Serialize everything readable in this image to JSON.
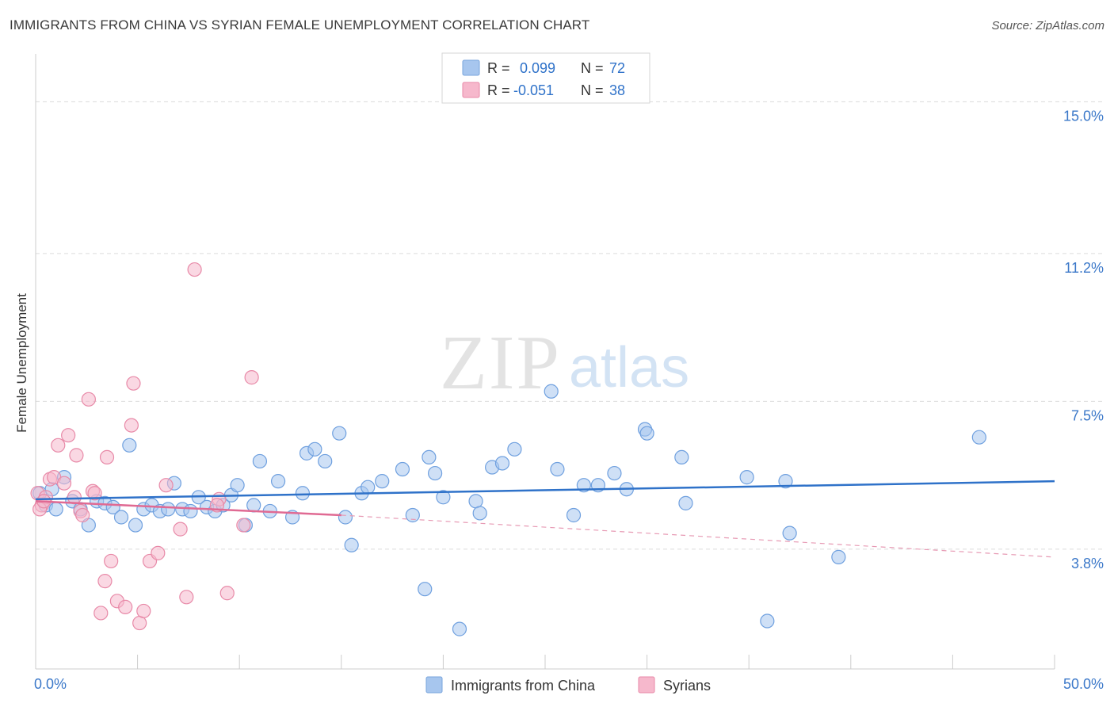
{
  "header": {
    "title": "IMMIGRANTS FROM CHINA VS SYRIAN FEMALE UNEMPLOYMENT CORRELATION CHART",
    "source": "Source: ZipAtlas.com"
  },
  "watermark": {
    "zip": "ZIP",
    "atlas": "atlas"
  },
  "legend_box": {
    "rows": [
      {
        "r_label": "R =",
        "r_value": "0.099",
        "n_label": "N =",
        "n_value": "72",
        "color": "#a7c6ee"
      },
      {
        "r_label": "R =",
        "r_value": "-0.051",
        "n_label": "N =",
        "n_value": "38",
        "color": "#f6b8cc"
      }
    ]
  },
  "bottom_legend": {
    "items": [
      {
        "label": "Immigrants from China",
        "color": "#a7c6ee"
      },
      {
        "label": "Syrians",
        "color": "#f6b8cc"
      }
    ]
  },
  "chart_data": {
    "type": "scatter",
    "title": "IMMIGRANTS FROM CHINA VS SYRIAN FEMALE UNEMPLOYMENT CORRELATION CHART",
    "xlabel": "",
    "ylabel": "Female Unemployment",
    "xlim": [
      0,
      50
    ],
    "ylim": [
      0.8,
      16.0
    ],
    "x_tick_labels": [
      "0.0%",
      "50.0%"
    ],
    "y_ticks": [
      3.8,
      7.5,
      11.2,
      15.0
    ],
    "y_tick_labels": [
      "3.8%",
      "7.5%",
      "11.2%",
      "15.0%"
    ],
    "grid": true,
    "series": [
      {
        "name": "Immigrants from China",
        "color": "#6fa0df",
        "fill": "#a7c6ee",
        "trend": {
          "x": [
            0,
            50
          ],
          "y": [
            5.05,
            5.5
          ],
          "color": "#2f72c9"
        },
        "points": [
          [
            0.2,
            5.2
          ],
          [
            0.5,
            4.9
          ],
          [
            1.0,
            4.8
          ],
          [
            1.4,
            5.6
          ],
          [
            1.8,
            5.0
          ],
          [
            2.2,
            4.8
          ],
          [
            2.6,
            4.4
          ],
          [
            3.0,
            5.0
          ],
          [
            3.4,
            4.95
          ],
          [
            3.8,
            4.85
          ],
          [
            4.2,
            4.6
          ],
          [
            4.6,
            6.4
          ],
          [
            4.9,
            4.4
          ],
          [
            5.3,
            4.8
          ],
          [
            5.7,
            4.9
          ],
          [
            6.1,
            4.75
          ],
          [
            6.5,
            4.8
          ],
          [
            6.8,
            5.45
          ],
          [
            7.2,
            4.8
          ],
          [
            7.6,
            4.75
          ],
          [
            8.0,
            5.1
          ],
          [
            8.4,
            4.85
          ],
          [
            8.8,
            4.75
          ],
          [
            9.2,
            4.9
          ],
          [
            9.6,
            5.15
          ],
          [
            9.9,
            5.4
          ],
          [
            10.3,
            4.4
          ],
          [
            10.7,
            4.9
          ],
          [
            11.0,
            6.0
          ],
          [
            11.5,
            4.75
          ],
          [
            11.9,
            5.5
          ],
          [
            12.6,
            4.6
          ],
          [
            13.1,
            5.2
          ],
          [
            13.3,
            6.2
          ],
          [
            13.7,
            6.3
          ],
          [
            14.2,
            6.0
          ],
          [
            14.9,
            6.7
          ],
          [
            15.2,
            4.6
          ],
          [
            15.5,
            3.9
          ],
          [
            16.0,
            5.2
          ],
          [
            16.3,
            5.35
          ],
          [
            17.0,
            5.5
          ],
          [
            18.0,
            5.8
          ],
          [
            18.5,
            4.65
          ],
          [
            19.1,
            2.8
          ],
          [
            19.3,
            6.1
          ],
          [
            19.6,
            5.7
          ],
          [
            20.0,
            5.1
          ],
          [
            20.8,
            1.8
          ],
          [
            21.6,
            5.0
          ],
          [
            21.8,
            4.7
          ],
          [
            22.4,
            5.85
          ],
          [
            22.9,
            5.95
          ],
          [
            23.5,
            6.3
          ],
          [
            25.3,
            7.75
          ],
          [
            25.6,
            5.8
          ],
          [
            26.4,
            4.65
          ],
          [
            26.9,
            5.4
          ],
          [
            27.6,
            5.4
          ],
          [
            28.4,
            5.7
          ],
          [
            29.0,
            5.3
          ],
          [
            29.9,
            6.8
          ],
          [
            30.0,
            6.7
          ],
          [
            31.7,
            6.1
          ],
          [
            31.9,
            4.95
          ],
          [
            34.9,
            5.6
          ],
          [
            35.9,
            2.0
          ],
          [
            36.8,
            5.5
          ],
          [
            37.0,
            4.2
          ],
          [
            39.4,
            3.6
          ],
          [
            46.3,
            6.6
          ],
          [
            0.8,
            5.3
          ]
        ]
      },
      {
        "name": "Syrians",
        "color": "#e88aa8",
        "fill": "#f6b8cc",
        "trend": {
          "x": [
            0,
            15
          ],
          "y": [
            5.0,
            4.65
          ],
          "color": "#e06a93"
        },
        "trend_dashed": {
          "x": [
            15,
            50
          ],
          "y": [
            4.65,
            3.6
          ],
          "color": "#e79ab4"
        },
        "points": [
          [
            0.1,
            5.2
          ],
          [
            0.3,
            4.9
          ],
          [
            0.5,
            5.1
          ],
          [
            0.7,
            5.55
          ],
          [
            0.9,
            5.6
          ],
          [
            1.1,
            6.4
          ],
          [
            1.4,
            5.45
          ],
          [
            1.6,
            6.65
          ],
          [
            1.9,
            5.1
          ],
          [
            2.0,
            6.15
          ],
          [
            2.2,
            4.75
          ],
          [
            2.3,
            4.65
          ],
          [
            2.6,
            7.55
          ],
          [
            2.8,
            5.25
          ],
          [
            2.9,
            5.2
          ],
          [
            3.2,
            2.2
          ],
          [
            3.4,
            3.0
          ],
          [
            3.5,
            6.1
          ],
          [
            3.7,
            3.5
          ],
          [
            4.0,
            2.5
          ],
          [
            4.4,
            2.35
          ],
          [
            4.7,
            6.9
          ],
          [
            4.8,
            7.95
          ],
          [
            5.1,
            1.95
          ],
          [
            5.3,
            2.25
          ],
          [
            5.6,
            3.5
          ],
          [
            6.0,
            3.7
          ],
          [
            6.4,
            5.4
          ],
          [
            7.1,
            4.3
          ],
          [
            7.4,
            2.6
          ],
          [
            7.8,
            10.8
          ],
          [
            9.0,
            5.05
          ],
          [
            9.4,
            2.7
          ],
          [
            10.2,
            4.4
          ],
          [
            10.6,
            8.1
          ],
          [
            0.2,
            4.8
          ],
          [
            0.4,
            5.0
          ],
          [
            8.9,
            4.9
          ]
        ]
      }
    ]
  }
}
